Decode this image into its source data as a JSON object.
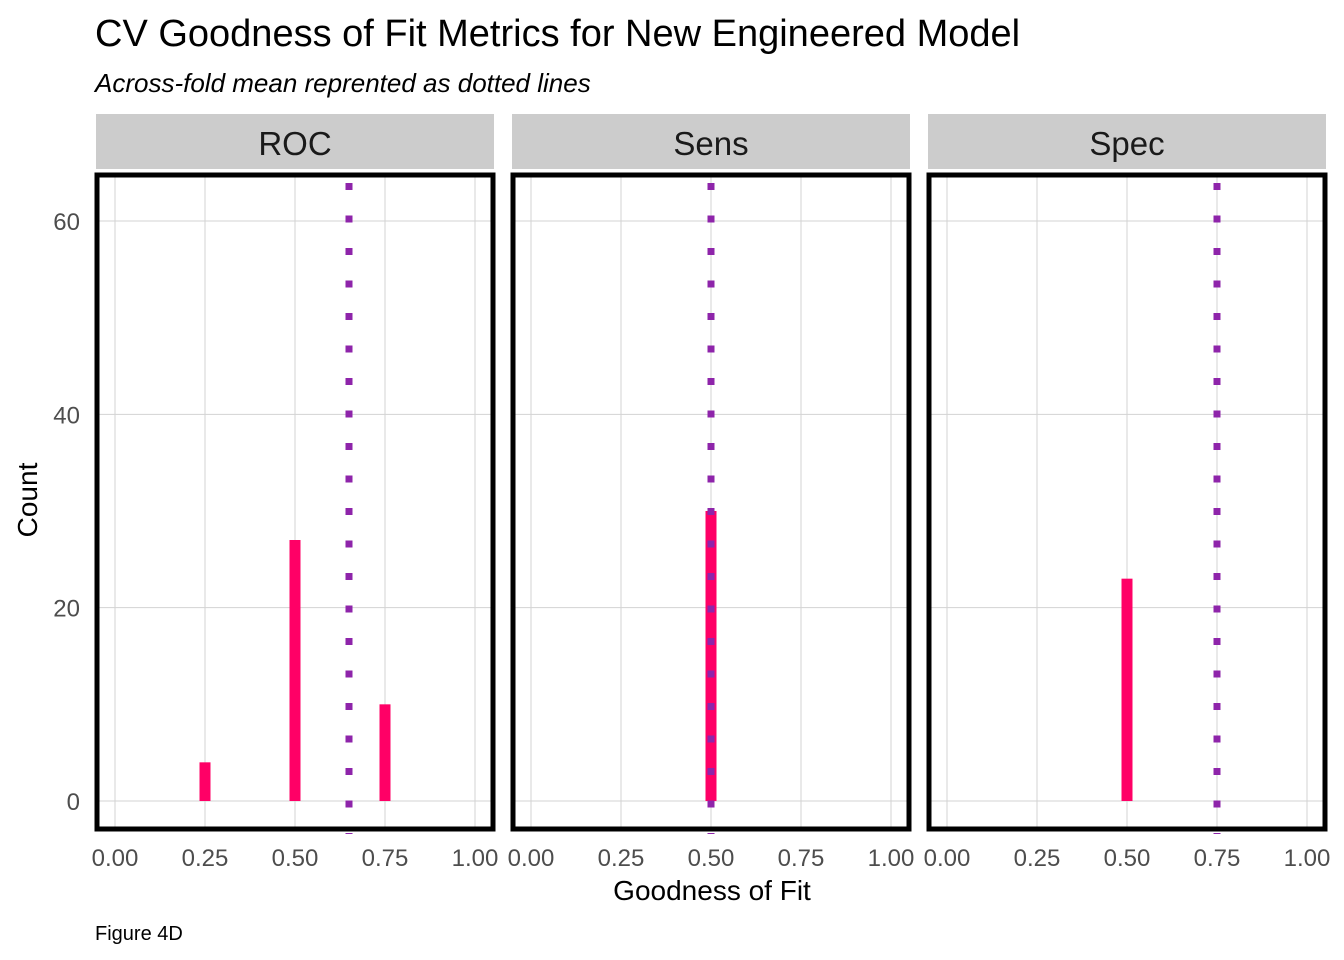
{
  "chart_data": {
    "type": "bar",
    "title": "CV Goodness of Fit Metrics for New Engineered Model",
    "subtitle": "Across-fold mean reprented as dotted lines",
    "xlabel": "Goodness of Fit",
    "ylabel": "Count",
    "caption": "Figure 4D",
    "xlim": [
      0,
      1
    ],
    "ylim": [
      0,
      60
    ],
    "xticks": [
      "0.00",
      "0.25",
      "0.50",
      "0.75",
      "1.00"
    ],
    "yticks": [
      "0",
      "20",
      "40",
      "60"
    ],
    "grid": true,
    "bar_color": "#ff0066",
    "mean_line_color": "#8e24aa",
    "strip_color": "#cccccc",
    "panels": [
      {
        "name": "ROC",
        "bars": [
          {
            "x": 0.25,
            "count": 4
          },
          {
            "x": 0.5,
            "count": 27
          },
          {
            "x": 0.75,
            "count": 10
          }
        ],
        "mean": 0.65
      },
      {
        "name": "Sens",
        "bars": [
          {
            "x": 0.5,
            "count": 30
          }
        ],
        "mean": 0.5
      },
      {
        "name": "Spec",
        "bars": [
          {
            "x": 0.5,
            "count": 23
          }
        ],
        "mean": 0.75
      }
    ]
  }
}
